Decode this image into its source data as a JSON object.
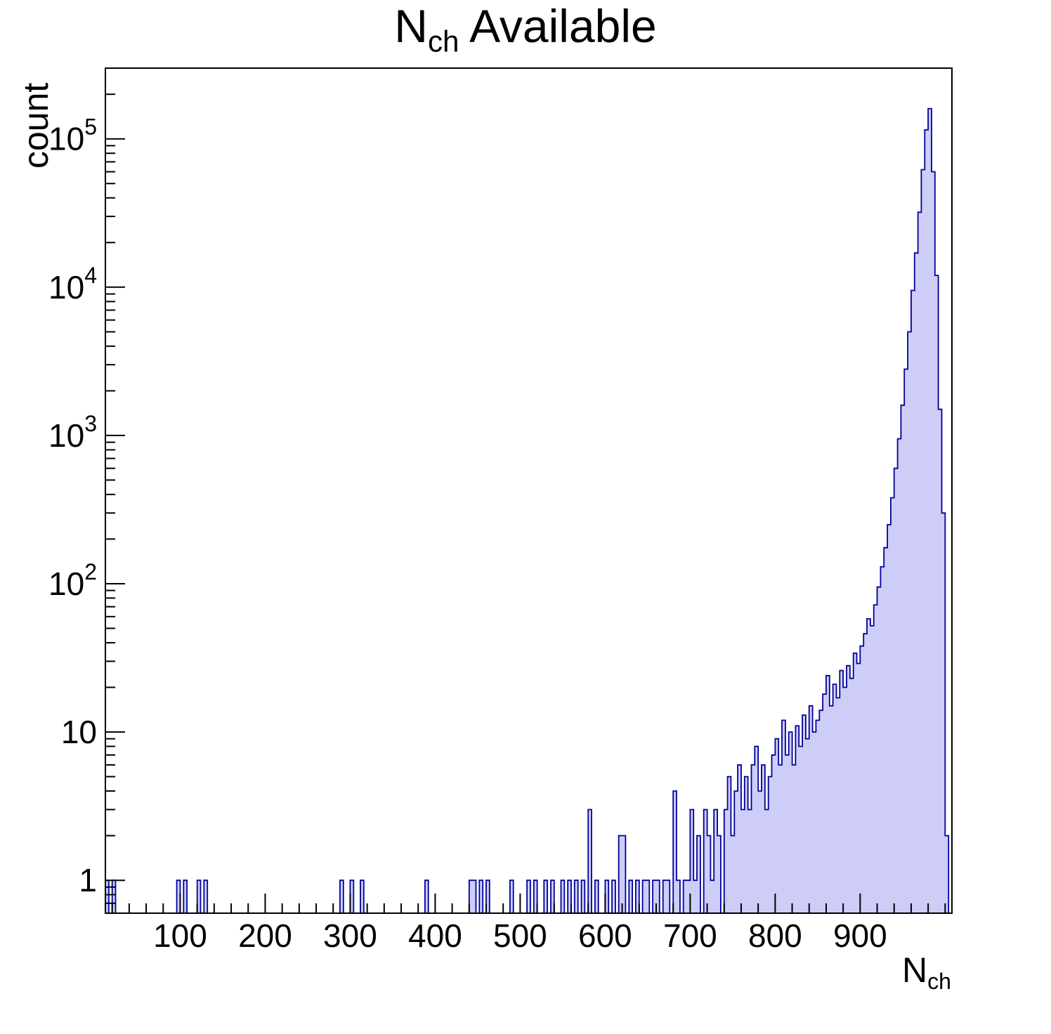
{
  "title": {
    "main": "N",
    "sub": "ch",
    "rest": "Available"
  },
  "x_label": {
    "main": "N",
    "sub": "ch"
  },
  "chart_data": {
    "type": "bar",
    "subtype": "histogram",
    "title": "N_ch Available",
    "xlabel": "N_ch",
    "ylabel": "count",
    "x_scale": "linear",
    "y_scale": "log",
    "xlim": [
      12,
      1008
    ],
    "ylim": [
      0.6,
      300000
    ],
    "x_ticks": [
      100,
      200,
      300,
      400,
      500,
      600,
      700,
      800,
      900
    ],
    "x_minor_tick_step": 20,
    "y_ticks": [
      1,
      10,
      100,
      1000,
      10000,
      100000
    ],
    "grid": false,
    "legend": false,
    "bin_width": 4,
    "bins": [
      [
        12,
        1
      ],
      [
        20,
        1
      ],
      [
        96,
        1
      ],
      [
        104,
        1
      ],
      [
        120,
        1
      ],
      [
        128,
        1
      ],
      [
        288,
        1
      ],
      [
        300,
        1
      ],
      [
        312,
        1
      ],
      [
        388,
        1
      ],
      [
        440,
        1
      ],
      [
        444,
        1
      ],
      [
        452,
        1
      ],
      [
        460,
        1
      ],
      [
        488,
        1
      ],
      [
        508,
        1
      ],
      [
        516,
        1
      ],
      [
        528,
        1
      ],
      [
        536,
        1
      ],
      [
        548,
        1
      ],
      [
        556,
        1
      ],
      [
        564,
        1
      ],
      [
        572,
        1
      ],
      [
        580,
        3
      ],
      [
        588,
        1
      ],
      [
        600,
        1
      ],
      [
        608,
        1
      ],
      [
        616,
        2
      ],
      [
        620,
        2
      ],
      [
        628,
        1
      ],
      [
        636,
        1
      ],
      [
        644,
        1
      ],
      [
        648,
        1
      ],
      [
        656,
        1
      ],
      [
        660,
        1
      ],
      [
        668,
        1
      ],
      [
        672,
        1
      ],
      [
        680,
        4
      ],
      [
        684,
        1
      ],
      [
        692,
        1
      ],
      [
        696,
        1
      ],
      [
        700,
        3
      ],
      [
        704,
        1
      ],
      [
        708,
        2
      ],
      [
        716,
        3
      ],
      [
        720,
        2
      ],
      [
        724,
        1
      ],
      [
        728,
        3
      ],
      [
        732,
        2
      ],
      [
        740,
        3
      ],
      [
        744,
        5
      ],
      [
        748,
        2
      ],
      [
        752,
        4
      ],
      [
        756,
        6
      ],
      [
        760,
        3
      ],
      [
        764,
        5
      ],
      [
        768,
        3
      ],
      [
        772,
        6
      ],
      [
        776,
        8
      ],
      [
        780,
        4
      ],
      [
        784,
        6
      ],
      [
        788,
        3
      ],
      [
        792,
        5
      ],
      [
        796,
        7
      ],
      [
        800,
        9
      ],
      [
        804,
        6
      ],
      [
        808,
        12
      ],
      [
        812,
        7
      ],
      [
        816,
        10
      ],
      [
        820,
        6
      ],
      [
        824,
        11
      ],
      [
        828,
        8
      ],
      [
        832,
        13
      ],
      [
        836,
        9
      ],
      [
        840,
        15
      ],
      [
        844,
        10
      ],
      [
        848,
        12
      ],
      [
        852,
        14
      ],
      [
        856,
        18
      ],
      [
        860,
        24
      ],
      [
        864,
        15
      ],
      [
        868,
        21
      ],
      [
        872,
        17
      ],
      [
        876,
        26
      ],
      [
        880,
        20
      ],
      [
        884,
        28
      ],
      [
        888,
        23
      ],
      [
        892,
        34
      ],
      [
        896,
        29
      ],
      [
        900,
        38
      ],
      [
        904,
        46
      ],
      [
        908,
        58
      ],
      [
        912,
        52
      ],
      [
        916,
        72
      ],
      [
        920,
        95
      ],
      [
        924,
        130
      ],
      [
        928,
        175
      ],
      [
        932,
        250
      ],
      [
        936,
        380
      ],
      [
        940,
        600
      ],
      [
        944,
        950
      ],
      [
        948,
        1600
      ],
      [
        952,
        2800
      ],
      [
        956,
        5000
      ],
      [
        960,
        9500
      ],
      [
        964,
        17000
      ],
      [
        968,
        32000
      ],
      [
        972,
        62000
      ],
      [
        976,
        115000
      ],
      [
        980,
        160000
      ],
      [
        984,
        60000
      ],
      [
        988,
        12000
      ],
      [
        992,
        1500
      ],
      [
        996,
        300
      ],
      [
        1000,
        2
      ]
    ],
    "colors": {
      "fill": "#cdcdf8",
      "line": "#000099",
      "axis": "#000000",
      "background": "#ffffff"
    }
  }
}
